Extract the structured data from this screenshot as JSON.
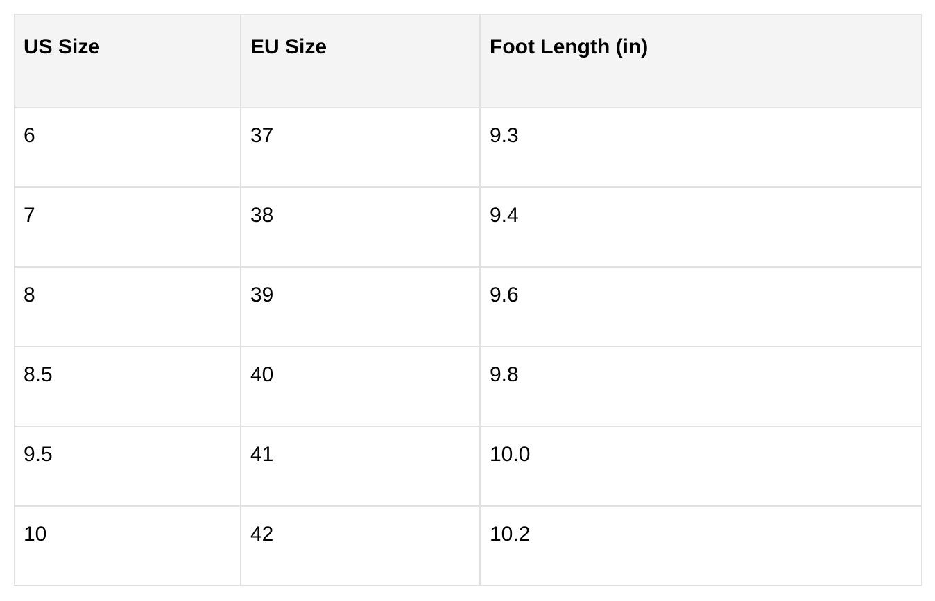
{
  "table": {
    "headers": [
      "US Size",
      "EU Size",
      "Foot Length (in)"
    ],
    "rows": [
      [
        "6",
        "37",
        "9.3"
      ],
      [
        "7",
        "38",
        "9.4"
      ],
      [
        "8",
        "39",
        "9.6"
      ],
      [
        "8.5",
        "40",
        "9.8"
      ],
      [
        "9.5",
        "41",
        "10.0"
      ],
      [
        "10",
        "42",
        "10.2"
      ]
    ]
  },
  "chart_data": {
    "type": "table",
    "title": "",
    "columns": [
      "US Size",
      "EU Size",
      "Foot Length (in)"
    ],
    "rows": [
      [
        "6",
        "37",
        "9.3"
      ],
      [
        "7",
        "38",
        "9.4"
      ],
      [
        "8",
        "39",
        "9.6"
      ],
      [
        "8.5",
        "40",
        "9.8"
      ],
      [
        "9.5",
        "41",
        "10.0"
      ],
      [
        "10",
        "42",
        "10.2"
      ]
    ]
  },
  "colors": {
    "page_background": "#ffffff",
    "header_background": "#f4f4f4",
    "cell_background": "#ffffff",
    "border": "#e1e1e1",
    "text": "#000000"
  }
}
